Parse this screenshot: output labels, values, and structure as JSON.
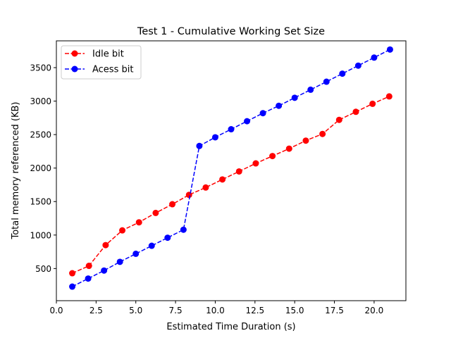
{
  "chart_data": {
    "type": "line",
    "title": "Test 1 - Cumulative Working Set Size",
    "xlabel": "Estimated Time Duration (s)",
    "ylabel": "Total memory referenced (KB)",
    "xlim": [
      0,
      22
    ],
    "ylim": [
      20,
      3900
    ],
    "xticks": [
      0.0,
      2.5,
      5.0,
      7.5,
      10.0,
      12.5,
      15.0,
      17.5,
      20.0
    ],
    "xtick_labels": [
      "0.0",
      "2.5",
      "5.0",
      "7.5",
      "10.0",
      "12.5",
      "15.0",
      "17.5",
      "20.0"
    ],
    "yticks": [
      500,
      1000,
      1500,
      2000,
      2500,
      3000,
      3500
    ],
    "ytick_labels": [
      "500",
      "1000",
      "1500",
      "2000",
      "2500",
      "3000",
      "3500"
    ],
    "grid": false,
    "legend_position": "top-left",
    "series": [
      {
        "name": "Idle bit",
        "color": "#ff0000",
        "line_style": "dashed",
        "marker": "circle",
        "x": [
          1.0,
          2.05,
          3.1,
          4.15,
          5.2,
          6.25,
          7.3,
          8.35,
          9.4,
          10.45,
          11.5,
          12.55,
          13.6,
          14.65,
          15.7,
          16.75,
          17.8,
          18.85,
          19.9,
          20.95
        ],
        "y": [
          430,
          540,
          850,
          1070,
          1190,
          1330,
          1460,
          1600,
          1710,
          1830,
          1950,
          2070,
          2180,
          2290,
          2410,
          2510,
          2720,
          2840,
          2960,
          3070
        ]
      },
      {
        "name": "Acess bit",
        "color": "#0000ff",
        "line_style": "dashed",
        "marker": "circle",
        "x": [
          1.0,
          2.0,
          3.0,
          4.0,
          5.0,
          6.0,
          7.0,
          8.0,
          9.0,
          10.0,
          11.0,
          12.0,
          13.0,
          14.0,
          15.0,
          16.0,
          17.0,
          18.0,
          19.0,
          20.0,
          21.0
        ],
        "y": [
          230,
          350,
          470,
          600,
          720,
          840,
          960,
          1080,
          2330,
          2460,
          2580,
          2700,
          2820,
          2930,
          3050,
          3170,
          3290,
          3410,
          3530,
          3650,
          3770
        ]
      }
    ]
  }
}
